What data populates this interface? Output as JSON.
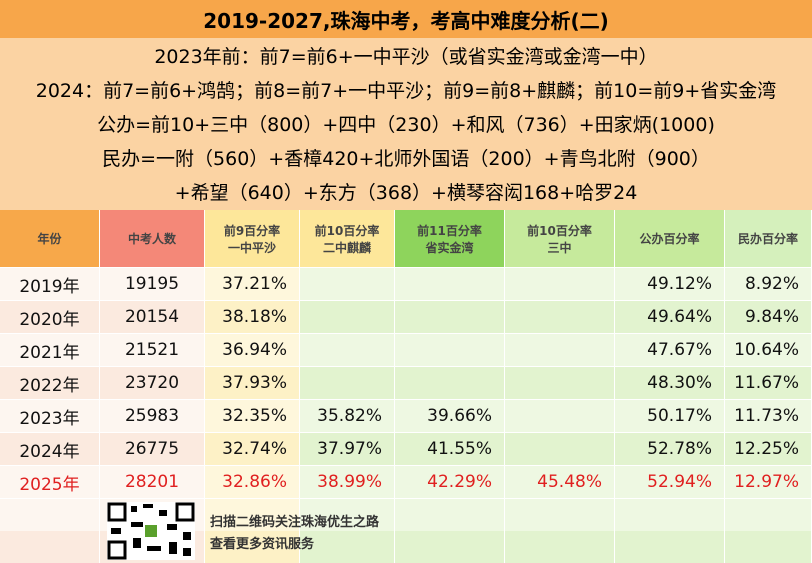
{
  "header": {
    "title": "2019-2027,珠海中考，考高中难度分析(二)",
    "lines": [
      "2023年前：前7=前6+一中平沙（或省实金湾或金湾一中）",
      "2024：前7=前6+鸿鹄；前8=前7+一中平沙；前9=前8+麒麟；前10=前9+省实金湾",
      "公办=前10+三中（800）+四中（230）+和风（736）+田家炳(1000)",
      "民办=一附（560）+香樟420+北师外国语（200）+青鸟北附（900）",
      "+希望（640）+东方（368）+横琴容闳168+哈罗24"
    ]
  },
  "table": {
    "columns": [
      [
        "年份"
      ],
      [
        "中考人数"
      ],
      [
        "前9百分率",
        "一中平沙"
      ],
      [
        "前10百分率",
        "二中麒麟"
      ],
      [
        "前11百分率",
        "省实金湾"
      ],
      [
        "前10百分率",
        "三中"
      ],
      [
        "公办百分率"
      ],
      [
        "民办百分率"
      ]
    ],
    "rows": [
      [
        "2019年",
        "19195",
        "37.21%",
        null,
        null,
        null,
        "49.12%",
        "8.92%"
      ],
      [
        "2020年",
        "20154",
        "38.18%",
        null,
        null,
        null,
        "49.64%",
        "9.84%"
      ],
      [
        "2021年",
        "21521",
        "36.94%",
        null,
        null,
        null,
        "47.67%",
        "10.64%"
      ],
      [
        "2022年",
        "23720",
        "37.93%",
        null,
        null,
        null,
        "48.30%",
        "11.67%"
      ],
      [
        "2023年",
        "25983",
        "32.35%",
        "35.82%",
        "39.66%",
        null,
        "50.17%",
        "11.73%"
      ],
      [
        "2024年",
        "26775",
        "32.74%",
        "37.97%",
        "41.55%",
        null,
        "52.78%",
        "12.25%"
      ],
      [
        "2025年",
        "28201",
        "32.86%",
        "38.99%",
        "42.29%",
        "45.48%",
        "52.94%",
        "12.97%"
      ]
    ]
  },
  "footer": {
    "lines": [
      "扫描二维码关注珠海优生之路",
      "查看更多资讯服务"
    ]
  }
}
